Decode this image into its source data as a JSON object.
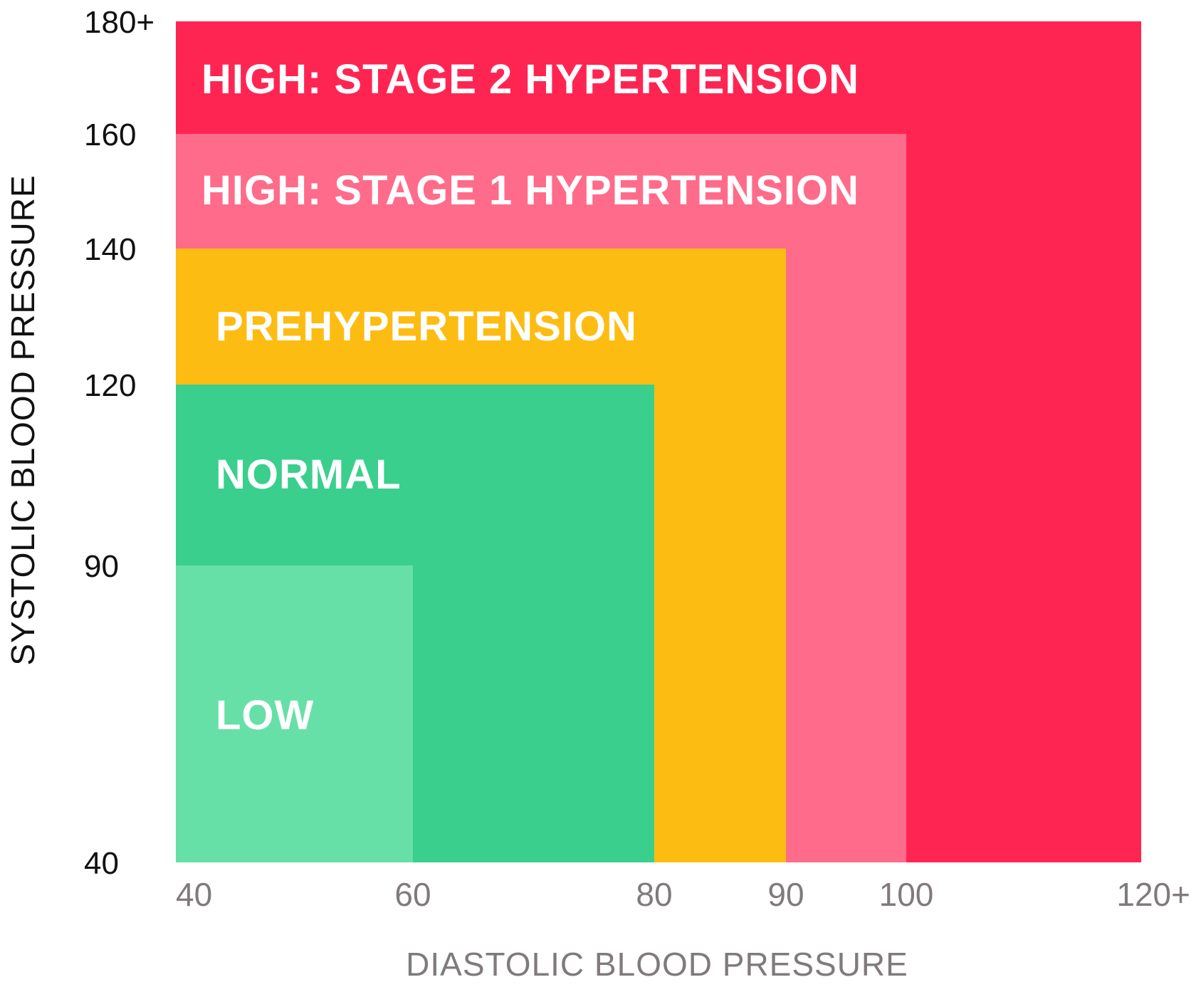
{
  "chart_data": {
    "type": "heatmap",
    "title": "",
    "xlabel": "DIASTOLIC BLOOD PRESSURE",
    "ylabel": "SYSTOLIC BLOOD PRESSURE",
    "x_ticks": [
      {
        "value": 40,
        "label": "40"
      },
      {
        "value": 60,
        "label": "60"
      },
      {
        "value": 80,
        "label": "80"
      },
      {
        "value": 90,
        "label": "90"
      },
      {
        "value": 100,
        "label": "100"
      },
      {
        "value": 120,
        "label": "120+"
      }
    ],
    "y_ticks": [
      {
        "value": 40,
        "label": "40"
      },
      {
        "value": 90,
        "label": "90"
      },
      {
        "value": 120,
        "label": "120"
      },
      {
        "value": 140,
        "label": "140"
      },
      {
        "value": 160,
        "label": "160"
      },
      {
        "value": 180,
        "label": "180+"
      }
    ],
    "zones": [
      {
        "name": "HIGH: STAGE 2 HYPERTENSION",
        "diastolic_max": 120,
        "systolic_max": 180,
        "color": "#ff2553"
      },
      {
        "name": "HIGH: STAGE 1 HYPERTENSION",
        "diastolic_max": 100,
        "systolic_max": 160,
        "color": "#ff6b8a"
      },
      {
        "name": "PREHYPERTENSION",
        "diastolic_max": 90,
        "systolic_max": 140,
        "color": "#fdbc12"
      },
      {
        "name": "NORMAL",
        "diastolic_max": 80,
        "systolic_max": 120,
        "color": "#3acf8d"
      },
      {
        "name": "LOW",
        "diastolic_max": 60,
        "systolic_max": 90,
        "color": "#66e0a7"
      }
    ]
  }
}
